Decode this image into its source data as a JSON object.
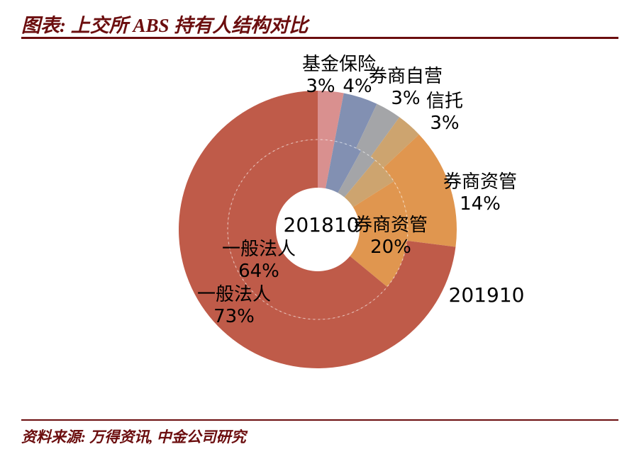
{
  "header": {
    "title": "图表: 上交所 ABS 持有人结构对比"
  },
  "footer": {
    "source": "资料来源: 万得资讯, 中金公司研究"
  },
  "chart_data": {
    "type": "donut",
    "nested": true,
    "title": "上交所 ABS 持有人结构对比",
    "legend": "none",
    "start_angle": "top",
    "direction": "clockwise",
    "categories": [
      "基金",
      "保险",
      "券商自营",
      "信托",
      "券商资管",
      "一般法人"
    ],
    "colors": [
      "#D9908F",
      "#8290B2",
      "#A4A5A8",
      "#CDA46F",
      "#E0964F",
      "#BF5B49"
    ],
    "rings": [
      {
        "name": "201810",
        "position": "inner",
        "values": [
          3,
          5,
          3,
          5,
          20,
          64
        ]
      },
      {
        "name": "201910",
        "position": "outer",
        "values": [
          3,
          4,
          3,
          3,
          14,
          73
        ]
      }
    ],
    "annotations": {
      "fund": {
        "name": "基金",
        "value": "3%"
      },
      "insurance": {
        "name": "保险",
        "value": "4%"
      },
      "broker_prop": {
        "name": "券商自营",
        "value": "3%"
      },
      "trust": {
        "name": "信托",
        "value": "3%"
      },
      "am_outer": {
        "name": "券商资管",
        "value": "14%"
      },
      "am_inner": {
        "name": "券商资管",
        "value": "20%"
      },
      "legal_inner": {
        "name": "一般法人",
        "value": "64%"
      },
      "legal_outer": {
        "name": "一般法人",
        "value": "73%"
      },
      "inner_series": "201810",
      "outer_series": "201910"
    }
  }
}
